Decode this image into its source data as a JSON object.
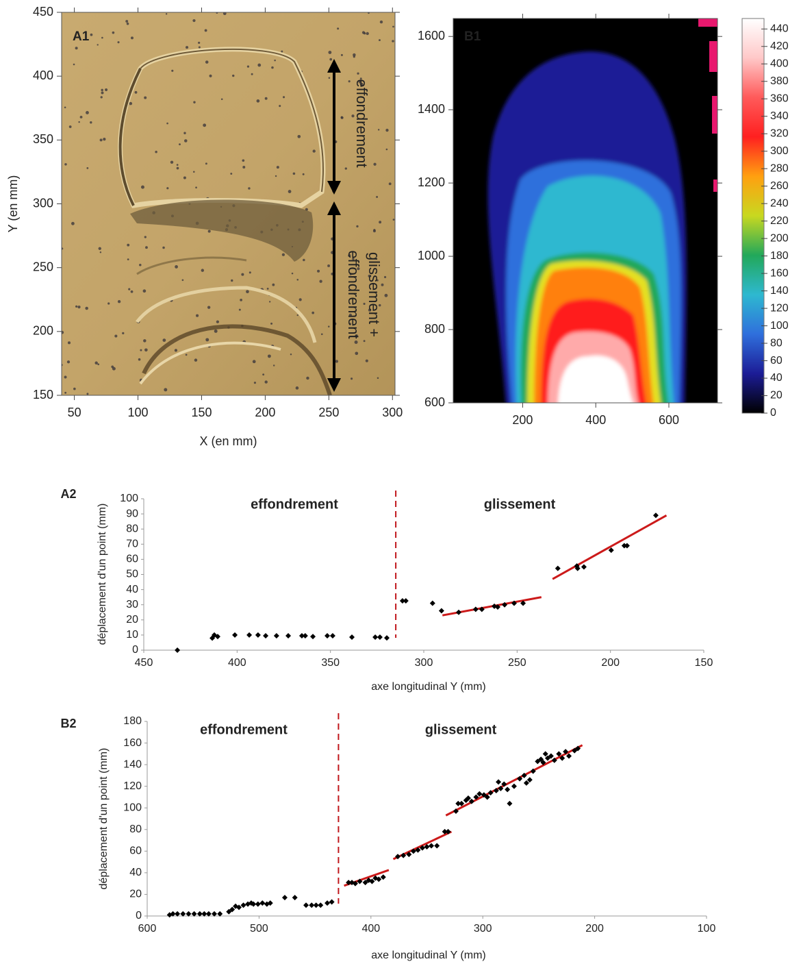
{
  "chart_data": [
    {
      "type": "image",
      "title": "A1",
      "xlabel": "X (en mm)",
      "ylabel": "Y (en mm)",
      "xlim": [
        40,
        302
      ],
      "ylim": [
        150,
        450
      ],
      "xticks": [
        50,
        100,
        150,
        200,
        250,
        300
      ],
      "yticks": [
        150,
        200,
        250,
        300,
        350,
        400,
        450
      ],
      "annotations": [
        {
          "lines": [
            "effondrement"
          ]
        },
        {
          "lines": [
            "glissement +",
            "effondrement"
          ]
        }
      ]
    },
    {
      "type": "heatmap",
      "title": "B1",
      "xlim": [
        10,
        733
      ],
      "ylim": [
        600,
        1649
      ],
      "xticks": [
        200,
        400,
        600
      ],
      "yticks": [
        600,
        800,
        1000,
        1200,
        1400,
        1600
      ],
      "clim": [
        0,
        452
      ],
      "cticks": [
        0,
        20,
        40,
        60,
        80,
        100,
        120,
        140,
        160,
        180,
        200,
        220,
        240,
        260,
        280,
        300,
        320,
        340,
        360,
        380,
        400,
        420,
        440
      ],
      "colorscale": [
        "#000000",
        "#1c1c96",
        "#2f6fdc",
        "#2eb8d0",
        "#22a85a",
        "#c8d820",
        "#ffa010",
        "#ff2020",
        "#ff5a5a",
        "#ffc8c8",
        "#ffffff"
      ]
    },
    {
      "type": "scatter",
      "title": "A2",
      "xlabel": "axe longitudinal Y (mm)",
      "ylabel": "déplacement d'un point (mm)",
      "xlim": [
        450,
        150
      ],
      "ylim": [
        0,
        100
      ],
      "xticks": [
        450,
        400,
        350,
        300,
        250,
        200,
        150
      ],
      "yticks": [
        0,
        10,
        20,
        30,
        40,
        50,
        60,
        70,
        80,
        90,
        100
      ],
      "x": [
        432,
        413.3,
        412.2,
        410.4,
        401.2,
        393.5,
        388.8,
        384.7,
        378.9,
        372.6,
        365.3,
        363.5,
        359.4,
        351.7,
        348.8,
        338.5,
        326,
        323.5,
        319.8,
        311.4,
        309.6,
        295.3,
        290.5,
        281.3,
        272.2,
        268.9,
        262.2,
        260.4,
        256.7,
        251.6,
        246.8,
        228.2,
        218,
        217.6,
        214.2,
        199.6,
        192.6,
        191.1,
        175.7
      ],
      "y": [
        0,
        8,
        10,
        9,
        10,
        10,
        10,
        9.5,
        9.5,
        9.5,
        9.5,
        9.5,
        9,
        9.5,
        9.5,
        8.6,
        8.6,
        8.6,
        8.1,
        32.6,
        32.6,
        31,
        26,
        25,
        27,
        27,
        29,
        28.5,
        30,
        31,
        31,
        54,
        55.6,
        54,
        55,
        66,
        69,
        69,
        89
      ],
      "color": "#000000",
      "fits": [
        {
          "x": [
            290,
            237
          ],
          "y": [
            23,
            35
          ]
        },
        {
          "x": [
            231,
            170
          ],
          "y": [
            47,
            89
          ]
        }
      ],
      "fit_color": "#cc1a1a",
      "divider_x": 315,
      "annotations": [
        "effondrement",
        "glissement"
      ],
      "annotation_color": "#c0161b"
    },
    {
      "type": "scatter",
      "title": "B2",
      "xlabel": "axe longitudinal Y (mm)",
      "ylabel": "déplacement d'un point (mm)",
      "xlim": [
        600,
        100
      ],
      "ylim": [
        0,
        180
      ],
      "xticks": [
        600,
        500,
        400,
        300,
        200,
        100
      ],
      "yticks": [
        0,
        20,
        40,
        60,
        80,
        100,
        120,
        140,
        160,
        180
      ],
      "x": [
        580,
        577,
        573,
        568,
        563,
        558,
        553,
        549,
        545,
        540,
        535,
        527,
        524,
        521,
        518,
        514,
        510,
        507,
        505,
        501,
        497,
        493,
        490,
        477,
        468,
        458,
        453,
        449,
        445,
        439,
        435,
        420,
        417,
        414,
        410,
        405,
        402,
        399,
        396,
        393,
        389,
        376,
        371,
        366,
        362,
        358,
        354,
        350,
        346,
        341,
        334,
        331,
        324,
        322,
        319,
        315,
        313,
        310,
        306,
        303,
        299,
        296,
        293,
        288,
        286,
        284,
        281,
        278,
        276,
        272,
        267,
        263,
        261,
        258,
        255,
        251,
        248,
        246,
        244,
        242,
        239,
        236,
        232,
        229,
        226,
        223,
        218,
        215
      ],
      "y": [
        1,
        2,
        2,
        2,
        2,
        2,
        2,
        2,
        2,
        2,
        2,
        4,
        6,
        9,
        8,
        10,
        11,
        12,
        11,
        11,
        12,
        11,
        12,
        17,
        17,
        10,
        10,
        10,
        10,
        12,
        13,
        31,
        31,
        30,
        32,
        31,
        33,
        32,
        35,
        34,
        36,
        55,
        56,
        57,
        60,
        61,
        63,
        64,
        65,
        65,
        78,
        78,
        97,
        104,
        104,
        107,
        109,
        106,
        110,
        113,
        112,
        110,
        114,
        116,
        124,
        118,
        122,
        117,
        104,
        120,
        127,
        130,
        123,
        126,
        134,
        143,
        145,
        142,
        150,
        146,
        148,
        144,
        150,
        146,
        152,
        148,
        153,
        155
      ],
      "color": "#000000",
      "fits": [
        {
          "x": [
            424,
            384
          ],
          "y": [
            28,
            42.5
          ]
        },
        {
          "x": [
            380,
            328
          ],
          "y": [
            52.6,
            78
          ]
        },
        {
          "x": [
            333,
            211
          ],
          "y": [
            93,
            158
          ]
        }
      ],
      "fit_color": "#cc1a1a",
      "divider_x": 429,
      "annotations": [
        "effondrement",
        "glissement"
      ],
      "annotation_color": "#c0161b"
    }
  ]
}
